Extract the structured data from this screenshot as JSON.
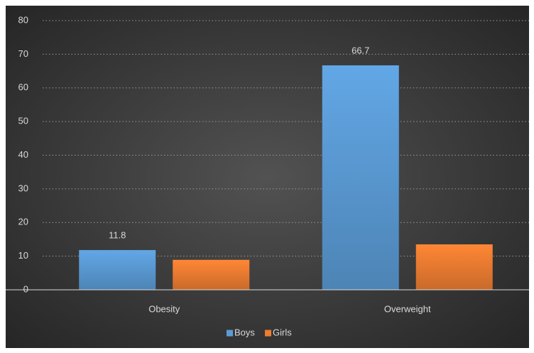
{
  "chart_data": {
    "type": "bar",
    "categories": [
      "Obesity",
      "Overweight"
    ],
    "series": [
      {
        "name": "Boys",
        "color": "#5b9bd5",
        "values": [
          11.8,
          66.7
        ],
        "show_labels": true
      },
      {
        "name": "Girls",
        "color": "#ed7d31",
        "values": [
          8.9,
          13.5
        ]
      }
    ],
    "ylim": [
      0,
      80
    ],
    "yticks": [
      0,
      10,
      20,
      30,
      40,
      50,
      60,
      70,
      80
    ],
    "grid": true,
    "legend": "bottom"
  }
}
